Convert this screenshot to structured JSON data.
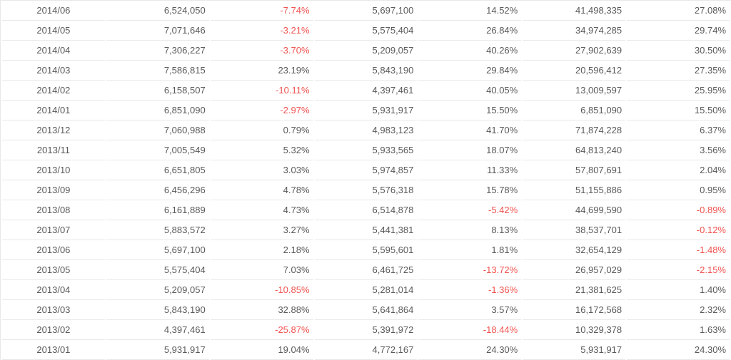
{
  "chart_data": {
    "type": "table",
    "rows": [
      [
        "2014/06",
        "6,524,050",
        "-7.74%",
        "5,697,100",
        "14.52%",
        "41,498,335",
        "27.08%"
      ],
      [
        "2014/05",
        "7,071,646",
        "-3.21%",
        "5,575,404",
        "26.84%",
        "34,974,285",
        "29.74%"
      ],
      [
        "2014/04",
        "7,306,227",
        "-3.70%",
        "5,209,057",
        "40.26%",
        "27,902,639",
        "30.50%"
      ],
      [
        "2014/03",
        "7,586,815",
        "23.19%",
        "5,843,190",
        "29.84%",
        "20,596,412",
        "27.35%"
      ],
      [
        "2014/02",
        "6,158,507",
        "-10.11%",
        "4,397,461",
        "40.05%",
        "13,009,597",
        "25.95%"
      ],
      [
        "2014/01",
        "6,851,090",
        "-2.97%",
        "5,931,917",
        "15.50%",
        "6,851,090",
        "15.50%"
      ],
      [
        "2013/12",
        "7,060,988",
        "0.79%",
        "4,983,123",
        "41.70%",
        "71,874,228",
        "6.37%"
      ],
      [
        "2013/11",
        "7,005,549",
        "5.32%",
        "5,933,565",
        "18.07%",
        "64,813,240",
        "3.56%"
      ],
      [
        "2013/10",
        "6,651,805",
        "3.03%",
        "5,974,857",
        "11.33%",
        "57,807,691",
        "2.04%"
      ],
      [
        "2013/09",
        "6,456,296",
        "4.78%",
        "5,576,318",
        "15.78%",
        "51,155,886",
        "0.95%"
      ],
      [
        "2013/08",
        "6,161,889",
        "4.73%",
        "6,514,878",
        "-5.42%",
        "44,699,590",
        "-0.89%"
      ],
      [
        "2013/07",
        "5,883,572",
        "3.27%",
        "5,441,381",
        "8.13%",
        "38,537,701",
        "-0.12%"
      ],
      [
        "2013/06",
        "5,697,100",
        "2.18%",
        "5,595,601",
        "1.81%",
        "32,654,129",
        "-1.48%"
      ],
      [
        "2013/05",
        "5,575,404",
        "7.03%",
        "6,461,725",
        "-13.72%",
        "26,957,029",
        "-2.15%"
      ],
      [
        "2013/04",
        "5,209,057",
        "-10.85%",
        "5,281,014",
        "-1.36%",
        "21,381,625",
        "1.40%"
      ],
      [
        "2013/03",
        "5,843,190",
        "32.88%",
        "5,641,864",
        "3.57%",
        "16,172,568",
        "2.32%"
      ],
      [
        "2013/02",
        "4,397,461",
        "-25.87%",
        "5,391,972",
        "-18.44%",
        "10,329,378",
        "1.63%"
      ],
      [
        "2013/01",
        "5,931,917",
        "19.04%",
        "4,772,167",
        "24.30%",
        "5,931,917",
        "24.30%"
      ]
    ]
  },
  "styles": {
    "text_color": "#595959",
    "negative_color": "#ef5350",
    "separator_color": "#e8e8e8",
    "background_color": "#ffffff"
  }
}
